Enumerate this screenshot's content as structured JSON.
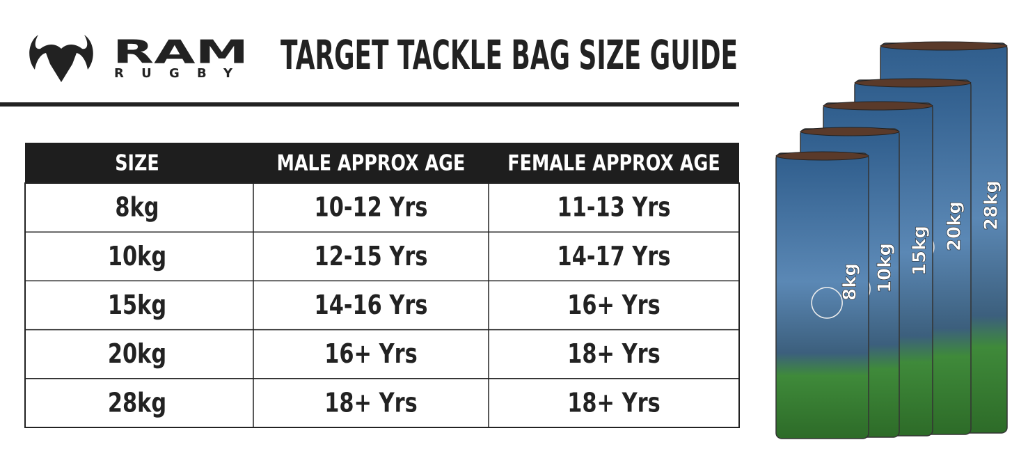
{
  "logo": {
    "name": "RAM",
    "subname": "RUGBY"
  },
  "header": {
    "title": "TARGET TACKLE BAG SIZE GUIDE"
  },
  "table": {
    "columns": [
      "SIZE",
      "MALE APPROX AGE",
      "FEMALE APPROX AGE"
    ],
    "rows": [
      [
        "8kg",
        "10-12 Yrs",
        "11-13 Yrs"
      ],
      [
        "10kg",
        "12-15 Yrs",
        "14-17 Yrs"
      ],
      [
        "15kg",
        "14-16 Yrs",
        "16+ Yrs"
      ],
      [
        "20kg",
        "16+ Yrs",
        "18+ Yrs"
      ],
      [
        "28kg",
        "18+ Yrs",
        "18+ Yrs"
      ]
    ]
  },
  "product_image": {
    "labels": [
      "8kg",
      "10kg",
      "15kg",
      "20kg",
      "28kg"
    ]
  }
}
